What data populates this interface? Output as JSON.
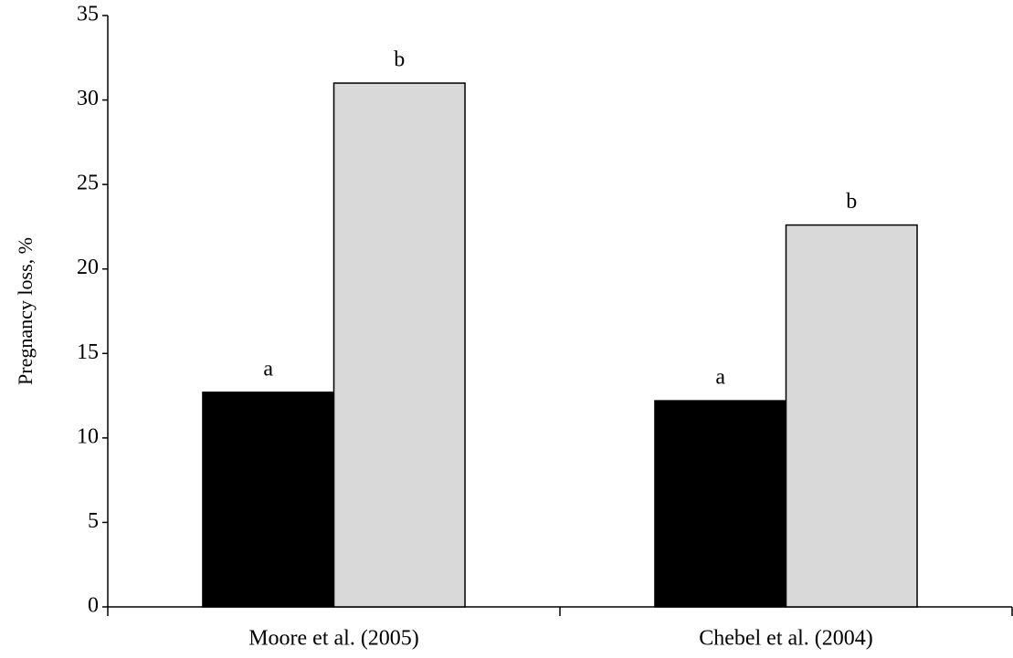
{
  "chart_data": {
    "type": "bar",
    "ylabel": "Pregnancy loss, %",
    "categories": [
      "Moore et al. (2005)",
      "Chebel et al. (2004)"
    ],
    "series": [
      {
        "color": "#000000",
        "values": [
          12.7,
          12.2
        ],
        "labels": [
          "a",
          "a"
        ]
      },
      {
        "color": "#d9d9d9",
        "values": [
          31,
          22.6
        ],
        "labels": [
          "b",
          "b"
        ]
      }
    ],
    "ylim": [
      0,
      35
    ],
    "yticks": [
      0,
      5,
      10,
      15,
      20,
      25,
      30,
      35
    ],
    "grid": false
  }
}
